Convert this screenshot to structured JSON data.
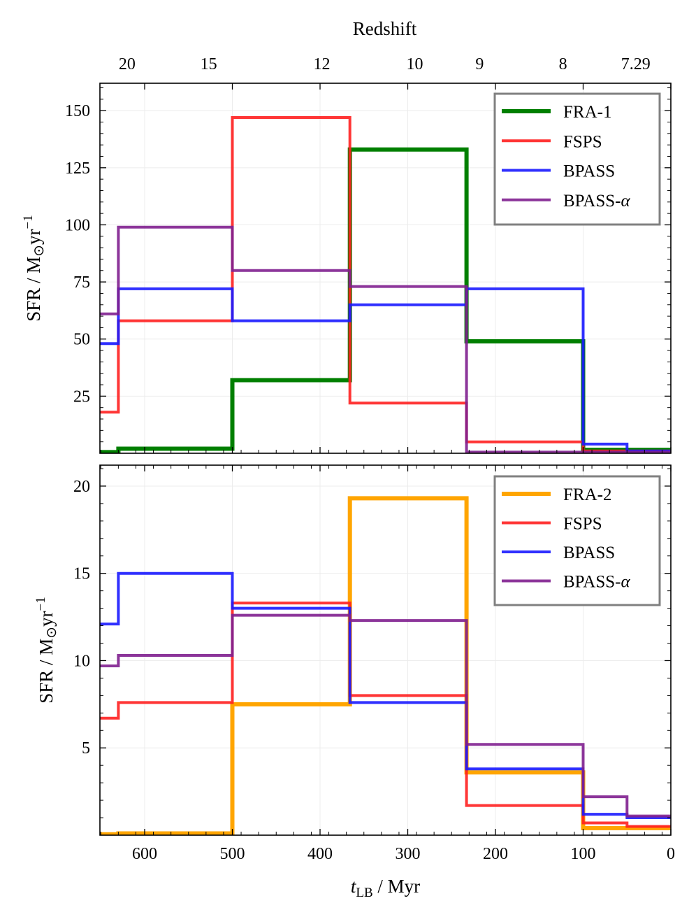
{
  "chart_data": [
    {
      "type": "line",
      "panel": "top",
      "title": "Redshift",
      "xlabel": "t_LB / Myr",
      "ylabel": "SFR / M⊙yr⁻¹",
      "xlim": [
        651,
        0
      ],
      "ylim": [
        0,
        162
      ],
      "grid": true,
      "legend_position": "top-right",
      "top_axis": {
        "label": "Redshift",
        "ticks": [
          {
            "label": "20",
            "t": 620
          },
          {
            "label": "15",
            "t": 527
          },
          {
            "label": "12",
            "t": 398
          },
          {
            "label": "10",
            "t": 292
          },
          {
            "label": "9",
            "t": 218
          },
          {
            "label": "8",
            "t": 123
          },
          {
            "label": "7.29",
            "t": 40
          }
        ]
      },
      "xticks": [
        600,
        500,
        400,
        300,
        200,
        100,
        0
      ],
      "yticks": [
        25,
        50,
        75,
        100,
        125,
        150
      ],
      "series": [
        {
          "name": "FRA-1",
          "color": "#007f00",
          "width": 6,
          "opacity": 1,
          "x": [
            651,
            630,
            630,
            500,
            500,
            366,
            366,
            233,
            233,
            100,
            100,
            0
          ],
          "y": [
            0.5,
            0.5,
            2,
            2,
            32,
            32,
            133,
            133,
            49,
            49,
            1.5,
            1.5
          ]
        },
        {
          "name": "FSPS",
          "color": "#ff2020",
          "width": 4,
          "opacity": 0.9,
          "x": [
            651,
            630,
            630,
            500,
            500,
            366,
            366,
            233,
            233,
            100,
            100,
            0
          ],
          "y": [
            18,
            18,
            58,
            58,
            147,
            147,
            22,
            22,
            5,
            5,
            1,
            1
          ]
        },
        {
          "name": "BPASS",
          "color": "#1a1aff",
          "width": 4,
          "opacity": 0.9,
          "x": [
            651,
            630,
            630,
            500,
            500,
            366,
            366,
            233,
            233,
            100,
            100,
            50,
            50,
            0
          ],
          "y": [
            48,
            48,
            72,
            72,
            58,
            58,
            65,
            65,
            72,
            72,
            4,
            4,
            1,
            1
          ]
        },
        {
          "name": "BPASS-α",
          "color": "#7f1f8f",
          "width": 4,
          "opacity": 0.9,
          "x": [
            651,
            630,
            630,
            500,
            500,
            366,
            366,
            233,
            233,
            0
          ],
          "y": [
            61,
            61,
            99,
            99,
            80,
            80,
            73,
            73,
            0.5,
            0.5
          ]
        }
      ]
    },
    {
      "type": "line",
      "panel": "bottom",
      "xlabel": "t_LB / Myr",
      "ylabel": "SFR / M⊙yr⁻¹",
      "xlim": [
        651,
        0
      ],
      "ylim": [
        0,
        21.2
      ],
      "grid": true,
      "legend_position": "top-right",
      "xticks": [
        600,
        500,
        400,
        300,
        200,
        100,
        0
      ],
      "yticks": [
        5,
        10,
        15,
        20
      ],
      "series": [
        {
          "name": "FRA-2",
          "color": "#ffa500",
          "width": 6,
          "opacity": 1,
          "x": [
            651,
            630,
            630,
            500,
            500,
            366,
            366,
            233,
            233,
            100,
            100,
            50,
            50,
            0
          ],
          "y": [
            0.05,
            0.05,
            0.1,
            0.1,
            7.5,
            7.5,
            19.3,
            19.3,
            3.6,
            3.6,
            0.4,
            0.4,
            0.4,
            0.4
          ]
        },
        {
          "name": "FSPS",
          "color": "#ff2020",
          "width": 4,
          "opacity": 0.9,
          "x": [
            651,
            630,
            630,
            500,
            500,
            366,
            366,
            233,
            233,
            100,
            100,
            50,
            50,
            0
          ],
          "y": [
            6.7,
            6.7,
            7.6,
            7.6,
            13.3,
            13.3,
            8.0,
            8.0,
            1.7,
            1.7,
            0.7,
            0.7,
            0.5,
            0.5
          ]
        },
        {
          "name": "BPASS",
          "color": "#1a1aff",
          "width": 4,
          "opacity": 0.9,
          "x": [
            651,
            630,
            630,
            500,
            500,
            366,
            366,
            233,
            233,
            100,
            100,
            50,
            50,
            0
          ],
          "y": [
            12.1,
            12.1,
            15.0,
            15.0,
            13.0,
            13.0,
            7.6,
            7.6,
            3.8,
            3.8,
            1.2,
            1.2,
            1.0,
            1.0
          ]
        },
        {
          "name": "BPASS-α",
          "color": "#7f1f8f",
          "width": 4,
          "opacity": 0.9,
          "x": [
            651,
            630,
            630,
            500,
            500,
            366,
            366,
            233,
            233,
            100,
            100,
            50,
            50,
            0
          ],
          "y": [
            9.7,
            9.7,
            10.3,
            10.3,
            12.6,
            12.6,
            12.3,
            12.3,
            5.2,
            5.2,
            2.2,
            2.2,
            1.1,
            1.1
          ]
        }
      ]
    }
  ],
  "labels": {
    "redshift": "Redshift",
    "xlabel_t": "t",
    "xlabel_sub": "LB",
    "xlabel_unit": " / Myr",
    "ylabel_main": "SFR / M",
    "ylabel_sun": "⊙",
    "ylabel_unit": "yr",
    "ylabel_exp": "−1"
  }
}
